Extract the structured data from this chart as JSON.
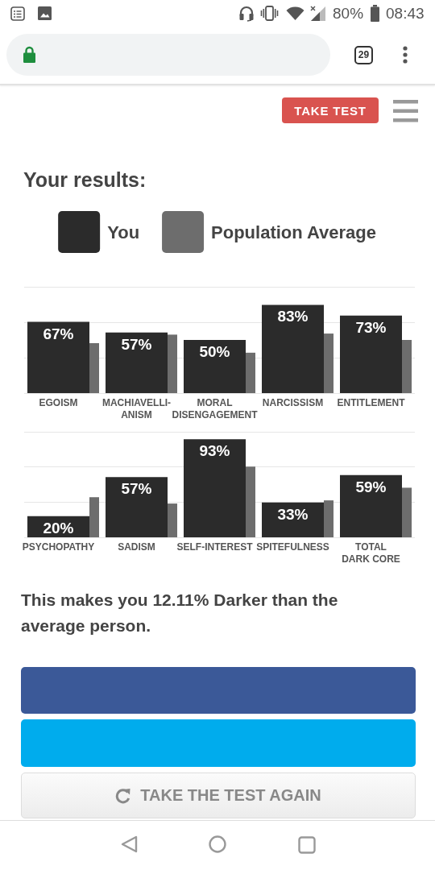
{
  "chart_data": [
    {
      "type": "bar",
      "title": "Your results:",
      "categories": [
        "EGOISM",
        "MACHIAVELLI-\nANISM",
        "MORAL\nDISENGAGEMENT",
        "NARCISSISM",
        "ENTITLEMENT"
      ],
      "series": [
        {
          "name": "You",
          "color": "#2b2b2b",
          "values": [
            67,
            57,
            50,
            83,
            73
          ],
          "value_labels": [
            "67%",
            "57%",
            "50%",
            "83%",
            "73%"
          ]
        },
        {
          "name": "Population Average",
          "color": "#6d6d6d",
          "values": [
            47,
            55,
            38,
            56,
            50
          ]
        }
      ],
      "ylim": [
        0,
        100
      ],
      "yticks": [
        {
          "value": 0,
          "label": null
        },
        {
          "value": 33.3,
          "label": null
        },
        {
          "value": 66.7,
          "label": null
        },
        {
          "value": 100,
          "label": null
        }
      ],
      "grid": "y",
      "legend": "top",
      "tick_labels": "x",
      "annotations": [
        "80%",
        "08:43",
        "29",
        "TAKE TEST"
      ]
    },
    {
      "type": "bar",
      "categories": [
        "PSYCHOPATHY",
        "SADISM",
        "SELF-INTEREST",
        "SPITEFULNESS",
        "TOTAL\nDARK CORE"
      ],
      "series": [
        {
          "color": "#2b2b2b",
          "values": [
            20,
            57,
            93,
            33,
            59
          ],
          "value_labels": [
            "20%",
            "57%",
            "93%",
            "33%",
            "59%"
          ]
        },
        {
          "color": "#6d6d6d",
          "values": [
            38,
            32,
            67,
            35,
            47
          ]
        }
      ],
      "ylim": [
        0,
        100
      ],
      "yticks": [
        {
          "value": 0,
          "label": null
        },
        {
          "value": 33.3,
          "label": null
        },
        {
          "value": 66.7,
          "label": null
        },
        {
          "value": 100,
          "label": null
        }
      ],
      "grid": "y",
      "tick_labels": "x",
      "annotations": [
        "This makes you 12.11% Darker than the average person.",
        "TAKE THE TEST AGAIN"
      ]
    }
  ]
}
